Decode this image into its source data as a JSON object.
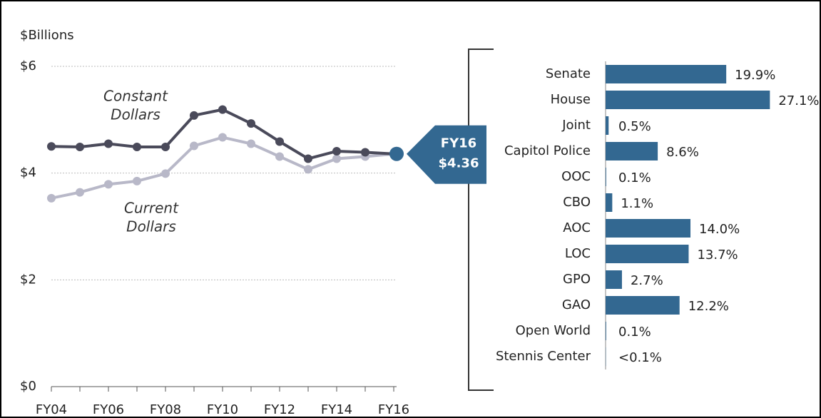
{
  "chart_data": [
    {
      "type": "line",
      "y_label": "$Billions",
      "categories": [
        "FY04",
        null,
        "FY06",
        null,
        "FY08",
        null,
        "FY10",
        null,
        "FY12",
        null,
        "FY14",
        null,
        "FY16"
      ],
      "series": [
        {
          "name": "Constant Dollars",
          "color": "#4a4a5a",
          "values": [
            4.5,
            4.49,
            4.55,
            4.49,
            4.49,
            5.08,
            5.19,
            4.93,
            4.59,
            4.27,
            4.41,
            4.39,
            4.36
          ]
        },
        {
          "name": "Current Dollars",
          "color": "#b8b8c8",
          "values": [
            3.53,
            3.64,
            3.79,
            3.85,
            3.99,
            4.51,
            4.67,
            4.55,
            4.31,
            4.07,
            4.27,
            4.31,
            4.36
          ]
        }
      ],
      "ylim": [
        0,
        6
      ],
      "yticks": [
        {
          "value": 0,
          "label": "$0"
        },
        {
          "value": 2,
          "label": "$2"
        },
        {
          "value": 4,
          "label": "$4"
        },
        {
          "value": 6,
          "label": "$6"
        }
      ],
      "grid": true,
      "annotations": [
        [
          "Constant",
          "Dollars"
        ],
        [
          "Current",
          "Dollars"
        ]
      ],
      "callout": {
        "lines": [
          "FY16",
          "$4.36"
        ],
        "color": "#336891"
      }
    },
    {
      "type": "hbar",
      "categories": [
        "Senate",
        "House",
        "Joint",
        "Capitol Police",
        "OOC",
        "CBO",
        "AOC",
        "LOC",
        "GPO",
        "GAO",
        "Open World",
        "Stennis Center"
      ],
      "values": [
        19.9,
        27.1,
        0.5,
        8.6,
        0.1,
        1.1,
        14.0,
        13.7,
        2.7,
        12.2,
        0.1,
        0.04
      ],
      "value_labels": [
        "19.9%",
        "27.1%",
        "0.5%",
        "8.6%",
        "0.1%",
        "1.1%",
        "14.0%",
        "13.7%",
        "2.7%",
        "12.2%",
        "0.1%",
        "<0.1%"
      ],
      "color": "#336891",
      "xlim": [
        0,
        30
      ]
    }
  ]
}
